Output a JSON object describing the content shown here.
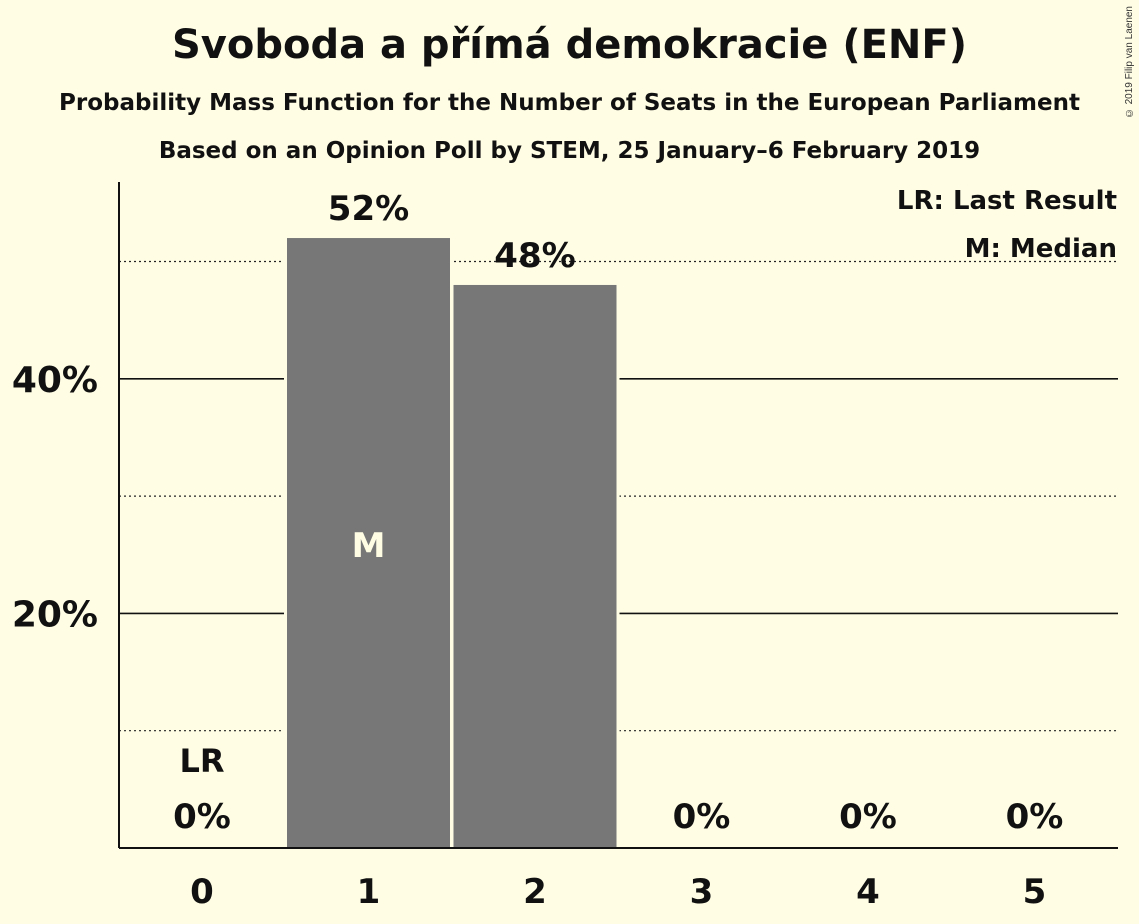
{
  "chart_data": {
    "type": "bar",
    "title": "Svoboda a přímá demokracie (ENF)",
    "subtitle": "Probability Mass Function for the Number of Seats in the European Parliament",
    "source": "Based on an Opinion Poll by STEM, 25 January–6 February 2019",
    "categories": [
      "0",
      "1",
      "2",
      "3",
      "4",
      "5"
    ],
    "values": [
      0,
      52,
      48,
      0,
      0,
      0
    ],
    "value_labels": [
      "0%",
      "52%",
      "48%",
      "0%",
      "0%",
      "0%"
    ],
    "ylim": [
      0,
      56
    ],
    "yticks": [
      20,
      40
    ],
    "ytick_labels": [
      "20%",
      "40%"
    ],
    "minor_gridlines": [
      10,
      30,
      50
    ],
    "last_result_index": 0,
    "median_index": 1,
    "last_result_marker": "LR",
    "median_marker": "M",
    "legend": [
      "LR: Last Result",
      "M: Median"
    ],
    "legend_position": "top-right",
    "bar_color": "#777777"
  },
  "copyright": "© 2019 Filip van Laenen"
}
